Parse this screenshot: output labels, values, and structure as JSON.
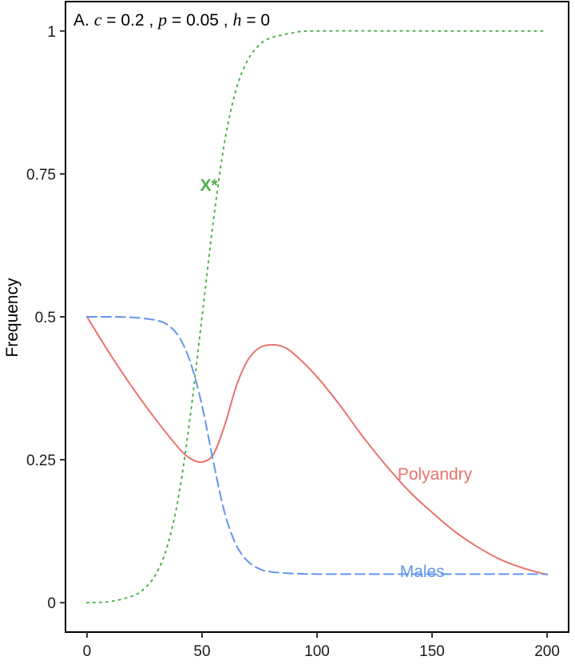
{
  "chart_data": {
    "type": "line",
    "panel_label": "A.",
    "parameters": [
      {
        "name": "c",
        "eq": " = ",
        "value": "0.2"
      },
      {
        "name": "p",
        "eq": " = ",
        "value": "0.05"
      },
      {
        "name": "h",
        "eq": " = ",
        "value": "0"
      }
    ],
    "xlabel": "",
    "ylabel": "Frequency",
    "xlim": [
      -9,
      209
    ],
    "ylim": [
      -0.05,
      1.05
    ],
    "xticks": [
      0,
      50,
      100,
      150,
      200
    ],
    "xtick_labels": [
      "0",
      "50",
      "100",
      "150",
      "200"
    ],
    "yticks": [
      0,
      0.25,
      0.5,
      0.75,
      1
    ],
    "ytick_labels": [
      "0",
      "0.25",
      "0.5",
      "0.75",
      "1"
    ],
    "grid": false,
    "series": [
      {
        "name": "Polyandry",
        "color": "#E8736C",
        "style": "solid",
        "label_at": {
          "x": 135,
          "y": 0.225
        },
        "x": [
          0,
          10,
          20,
          30,
          40,
          45,
          50,
          55,
          60,
          65,
          70,
          75,
          80,
          85,
          90,
          100,
          110,
          120,
          130,
          140,
          150,
          160,
          170,
          180,
          190,
          200
        ],
        "y": [
          0.5,
          0.435,
          0.375,
          0.32,
          0.27,
          0.252,
          0.246,
          0.26,
          0.312,
          0.38,
          0.425,
          0.446,
          0.451,
          0.448,
          0.435,
          0.395,
          0.345,
          0.29,
          0.24,
          0.195,
          0.158,
          0.124,
          0.097,
          0.075,
          0.06,
          0.049
        ]
      },
      {
        "name": "Males",
        "color": "#6495ED",
        "style": "dashed",
        "label_at": {
          "x": 136,
          "y": 0.055
        },
        "x": [
          0,
          10,
          20,
          30,
          35,
          40,
          45,
          50,
          55,
          60,
          65,
          70,
          75,
          80,
          90,
          100,
          120,
          150,
          200
        ],
        "y": [
          0.5,
          0.5,
          0.499,
          0.494,
          0.486,
          0.465,
          0.42,
          0.345,
          0.245,
          0.155,
          0.1,
          0.072,
          0.059,
          0.054,
          0.051,
          0.05,
          0.05,
          0.05,
          0.05
        ]
      },
      {
        "name": "X*",
        "color": "#4DAF4A",
        "style": "dotted",
        "label_at": {
          "x": 53,
          "y": 0.73
        },
        "x": [
          0,
          10,
          20,
          25,
          30,
          35,
          40,
          45,
          50,
          55,
          60,
          65,
          70,
          75,
          80,
          90,
          100,
          150,
          200
        ],
        "y": [
          0.0,
          0.002,
          0.012,
          0.025,
          0.05,
          0.1,
          0.19,
          0.33,
          0.5,
          0.67,
          0.81,
          0.9,
          0.95,
          0.976,
          0.988,
          0.997,
          1.0,
          1.0,
          1.0
        ]
      }
    ]
  }
}
